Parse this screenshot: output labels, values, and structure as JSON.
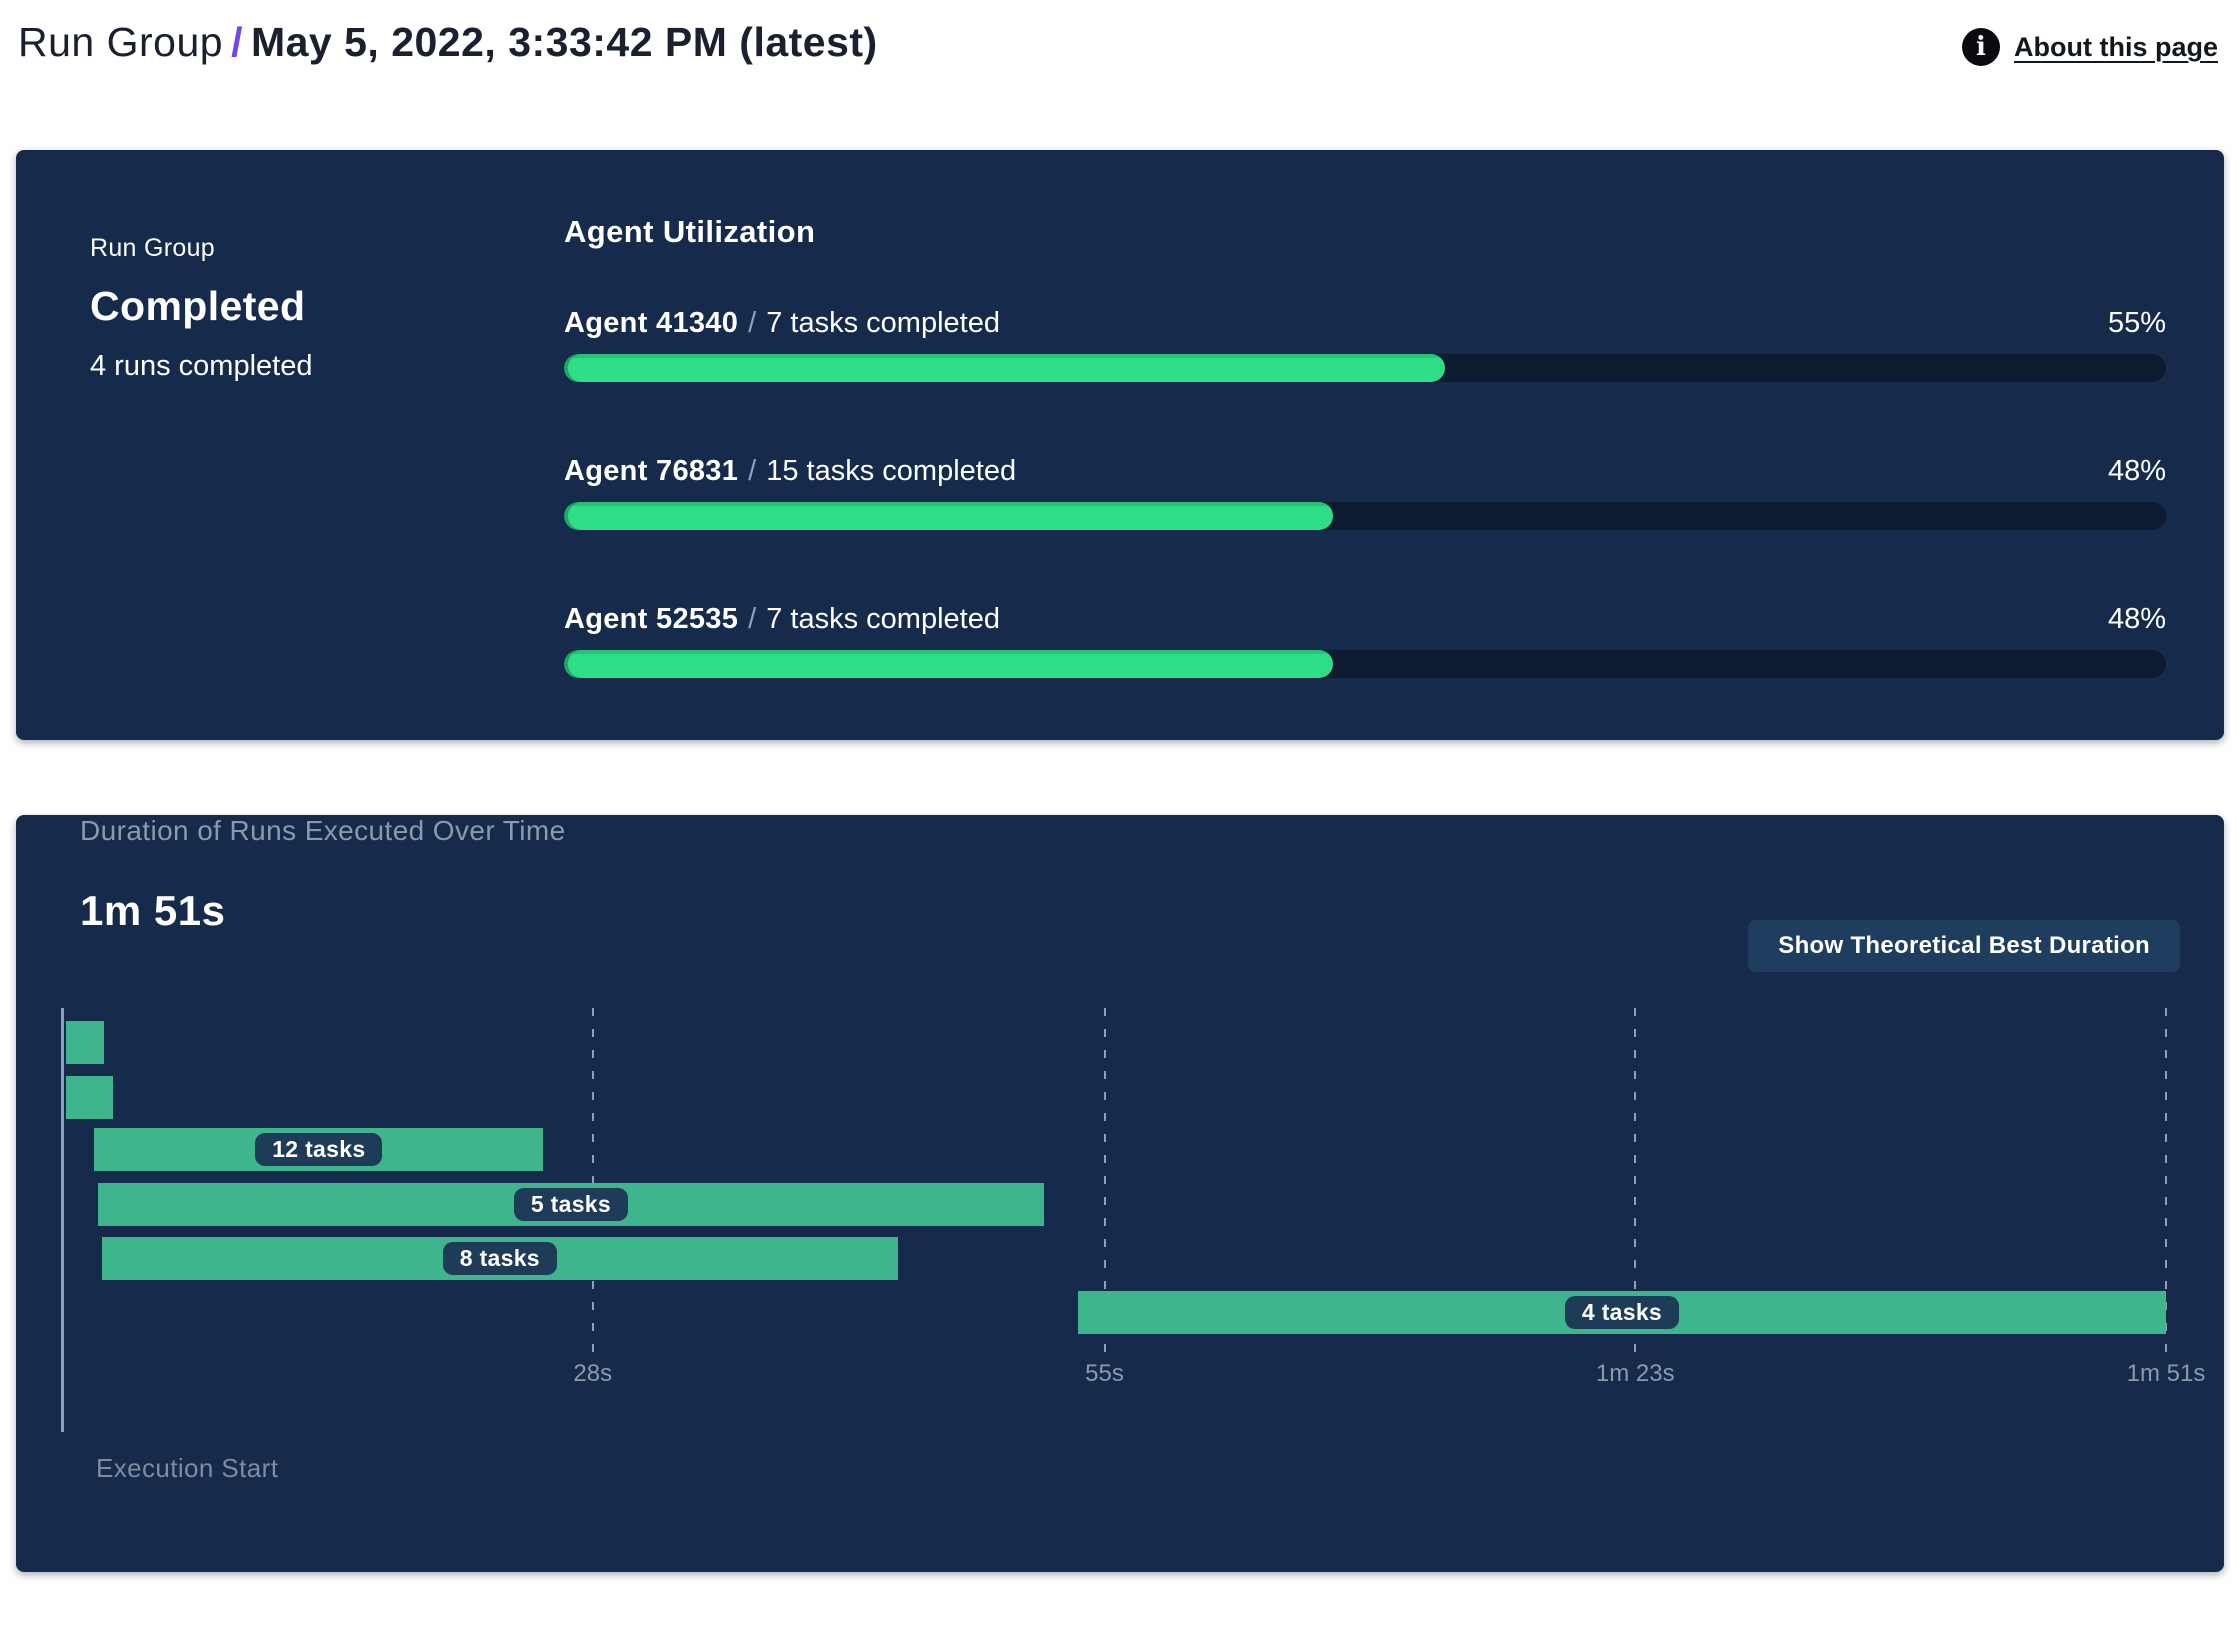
{
  "header": {
    "breadcrumb_root": "Run Group",
    "breadcrumb_separator": "/",
    "current_run": "May 5, 2022, 3:33:42 PM (latest)",
    "about_link_label": "About this page",
    "info_icon_glyph": "i"
  },
  "run_group_panel": {
    "label": "Run Group",
    "status": "Completed",
    "runs_summary": "4 runs completed",
    "agent_utilization": {
      "heading": "Agent Utilization",
      "separator": "/",
      "agents": [
        {
          "name": "Agent 41340",
          "tasks": "7 tasks completed",
          "percent": 55,
          "percent_label": "55%"
        },
        {
          "name": "Agent 76831",
          "tasks": "15 tasks completed",
          "percent": 48,
          "percent_label": "48%"
        },
        {
          "name": "Agent 52535",
          "tasks": "7 tasks completed",
          "percent": 48,
          "percent_label": "48%"
        }
      ]
    }
  },
  "duration_panel": {
    "title": "Duration of Runs Executed Over Time",
    "total_duration": "1m 51s",
    "button_label": "Show Theoretical Best Duration",
    "execution_start_label": "Execution Start"
  },
  "chart_data": {
    "type": "gantt",
    "title": "Duration of Runs Executed Over Time",
    "total_duration_label": "1m 51s",
    "x_axis": {
      "unit": "seconds",
      "min_s": 0,
      "max_s": 111,
      "ticks": [
        {
          "s": 28,
          "label": "28s"
        },
        {
          "s": 55,
          "label": "55s"
        },
        {
          "s": 83,
          "label": "1m 23s"
        },
        {
          "s": 111,
          "label": "1m 51s"
        }
      ],
      "origin_label": "Execution Start"
    },
    "runs": [
      {
        "start_s": 0.2,
        "end_s": 2.2,
        "label": ""
      },
      {
        "start_s": 0.2,
        "end_s": 2.7,
        "label": ""
      },
      {
        "start_s": 1.7,
        "end_s": 25.4,
        "label": "12 tasks"
      },
      {
        "start_s": 1.9,
        "end_s": 51.8,
        "label": "5 tasks"
      },
      {
        "start_s": 2.1,
        "end_s": 44.1,
        "label": "8 tasks"
      },
      {
        "start_s": 53.6,
        "end_s": 111.0,
        "label": "4 tasks"
      }
    ]
  },
  "colors": {
    "panel_bg": "#162a4b",
    "accent_purple": "#6f46f0",
    "progress_green": "#2edd85",
    "progress_track": "#0d1b31",
    "gantt_green": "#3eb58c",
    "pill_bg": "#1e3c57",
    "button_bg": "#1e3d5f",
    "muted_text": "#8b99ad"
  }
}
